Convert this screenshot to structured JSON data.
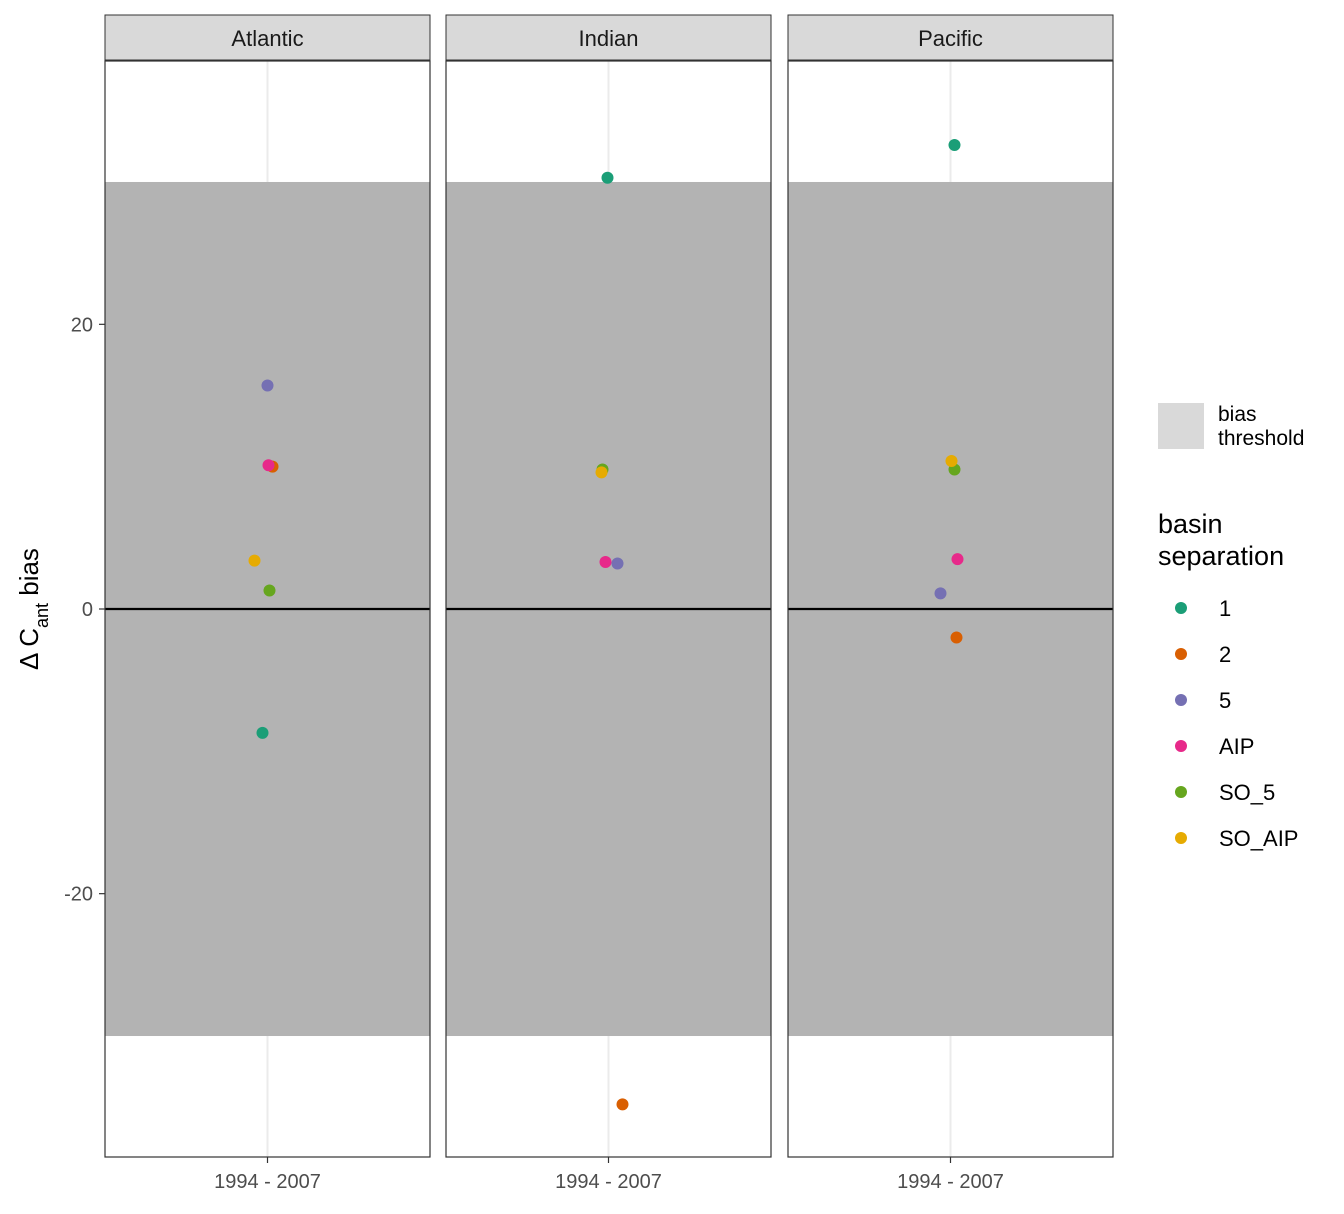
{
  "chart_data": {
    "type": "scatter",
    "facets": [
      "Atlantic",
      "Indian",
      "Pacific"
    ],
    "x_category": "1994 - 2007",
    "ylabel": {
      "main": "Δ C",
      "sub": "ant",
      "suffix": " bias"
    },
    "yticks": [
      -20,
      0,
      20
    ],
    "ylim": [
      -38.5,
      38.5
    ],
    "bias_threshold": 30,
    "reference_line": 0,
    "grid": true,
    "legend_position": "right",
    "legend_fill_label": [
      "bias",
      "threshold"
    ],
    "legend_title": [
      "basin",
      "separation"
    ],
    "series": [
      {
        "name": "1",
        "color": "#1B9E77",
        "values": {
          "Atlantic": -8.7,
          "Indian": 30.3,
          "Pacific": 32.6
        }
      },
      {
        "name": "2",
        "color": "#D95F02",
        "values": {
          "Atlantic": 10.0,
          "Indian": -34.8,
          "Pacific": -2.0
        }
      },
      {
        "name": "5",
        "color": "#7570B3",
        "values": {
          "Atlantic": 15.7,
          "Indian": 3.2,
          "Pacific": 1.1
        }
      },
      {
        "name": "AIP",
        "color": "#E7298A",
        "values": {
          "Atlantic": 10.1,
          "Indian": 3.3,
          "Pacific": 3.5
        }
      },
      {
        "name": "SO_5",
        "color": "#66A61E",
        "values": {
          "Atlantic": 1.3,
          "Indian": 9.8,
          "Pacific": 9.8
        }
      },
      {
        "name": "SO_AIP",
        "color": "#E6AB02",
        "values": {
          "Atlantic": 3.4,
          "Indian": 9.6,
          "Pacific": 10.4
        }
      }
    ],
    "jitter": {
      "Atlantic": [
        -5,
        5,
        0,
        1,
        2,
        -13
      ],
      "Indian": [
        -1,
        14,
        9,
        -3,
        -6,
        -7
      ],
      "Pacific": [
        4,
        6,
        -10,
        7,
        4,
        1
      ]
    }
  }
}
